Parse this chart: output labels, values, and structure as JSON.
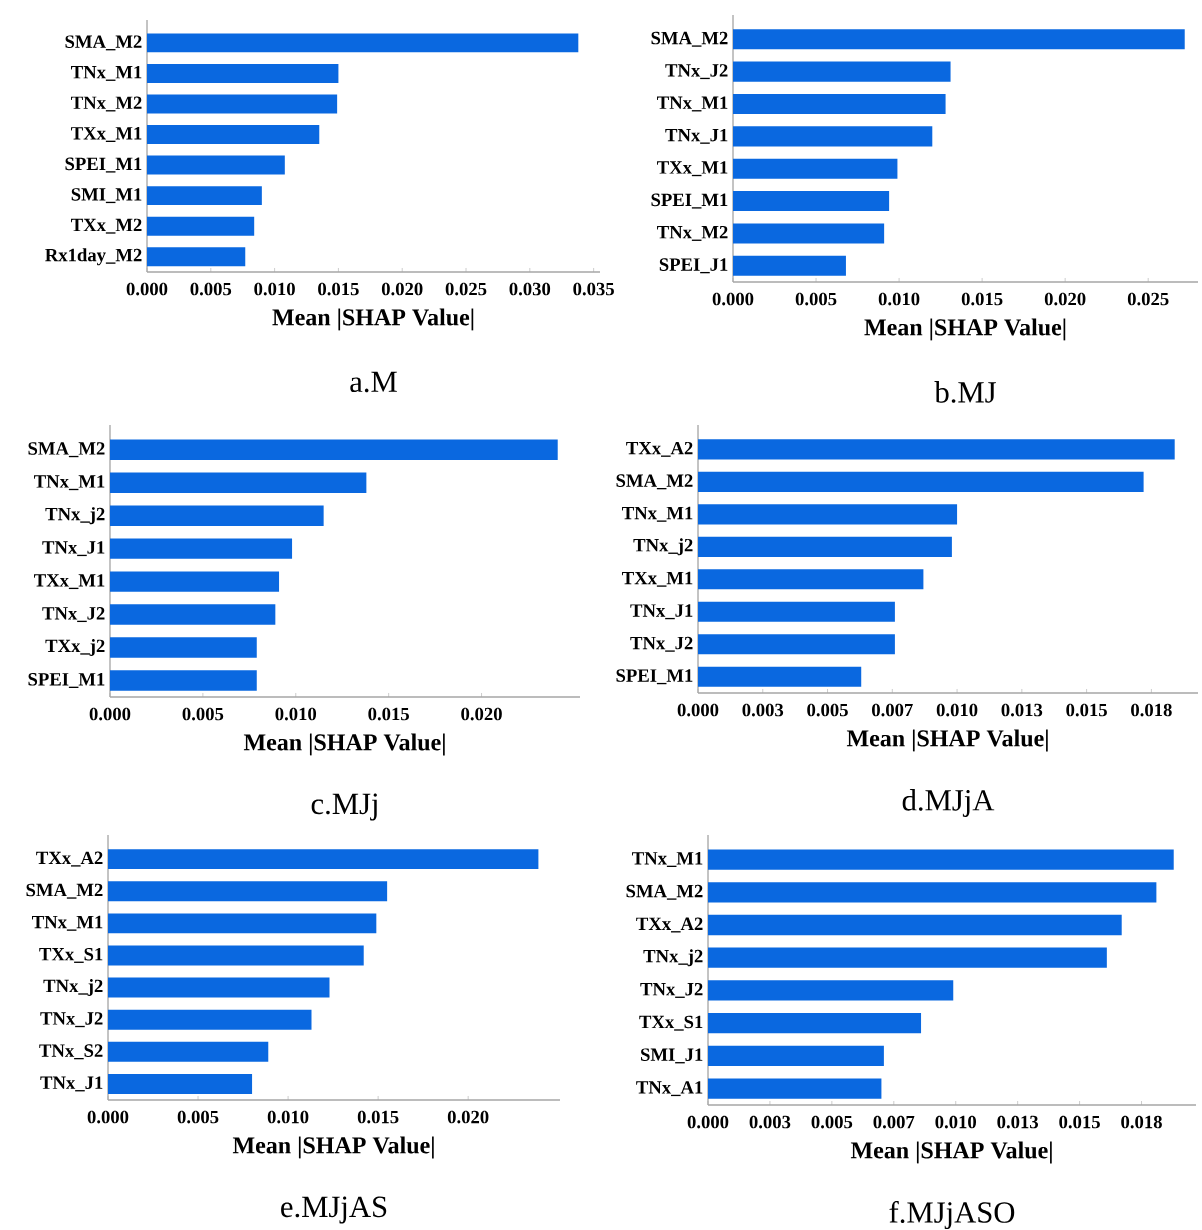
{
  "chart_data": [
    {
      "type": "bar",
      "orientation": "horizontal",
      "title": "a.M",
      "xlabel": "Mean |SHAP Value|",
      "color": "#0a68e0",
      "categories": [
        "SMA_M2",
        "TNx_M1",
        "TNx_M2",
        "TXx_M1",
        "SPEI_M1",
        "SMI_M1",
        "TXx_M2",
        "Rx1day_M2"
      ],
      "values": [
        0.0338,
        0.015,
        0.0149,
        0.0135,
        0.0108,
        0.009,
        0.0084,
        0.0077
      ],
      "xlim": [
        0,
        0.0355
      ],
      "xticks": [
        {
          "value": 0,
          "label": "0.000"
        },
        {
          "value": 0.005,
          "label": "0.005"
        },
        {
          "value": 0.01,
          "label": "0.010"
        },
        {
          "value": 0.015,
          "label": "0.015"
        },
        {
          "value": 0.02,
          "label": "0.020"
        },
        {
          "value": 0.025,
          "label": "0.025"
        },
        {
          "value": 0.03,
          "label": "0.030"
        },
        {
          "value": 0.035,
          "label": "0.035"
        }
      ]
    },
    {
      "type": "bar",
      "orientation": "horizontal",
      "title": "b.MJ",
      "xlabel": "Mean |SHAP Value|",
      "color": "#0a68e0",
      "categories": [
        "SMA_M2",
        "TNx_J2",
        "TNx_M1",
        "TNx_J1",
        "TXx_M1",
        "SPEI_M1",
        "TNx_M2",
        "SPEI_J1"
      ],
      "values": [
        0.0272,
        0.0131,
        0.0128,
        0.012,
        0.0099,
        0.0094,
        0.0091,
        0.0068
      ],
      "xlim": [
        0,
        0.028
      ],
      "xticks": [
        {
          "value": 0,
          "label": "0.000"
        },
        {
          "value": 0.005,
          "label": "0.005"
        },
        {
          "value": 0.01,
          "label": "0.010"
        },
        {
          "value": 0.015,
          "label": "0.015"
        },
        {
          "value": 0.02,
          "label": "0.020"
        },
        {
          "value": 0.025,
          "label": "0.025"
        }
      ]
    },
    {
      "type": "bar",
      "orientation": "horizontal",
      "title": "c.MJj",
      "xlabel": "Mean |SHAP Value|",
      "color": "#0a68e0",
      "categories": [
        "SMA_M2",
        "TNx_M1",
        "TNx_j2",
        "TNx_J1",
        "TXx_M1",
        "TNx_J2",
        "TXx_j2",
        "SPEI_M1"
      ],
      "values": [
        0.0241,
        0.0138,
        0.0115,
        0.0098,
        0.0091,
        0.0089,
        0.0079,
        0.0079
      ],
      "xlim": [
        0,
        0.0253
      ],
      "xticks": [
        {
          "value": 0,
          "label": "0.000"
        },
        {
          "value": 0.005,
          "label": "0.005"
        },
        {
          "value": 0.01,
          "label": "0.010"
        },
        {
          "value": 0.015,
          "label": "0.015"
        },
        {
          "value": 0.02,
          "label": "0.020"
        }
      ]
    },
    {
      "type": "bar",
      "orientation": "horizontal",
      "title": "d.MJjA",
      "xlabel": "Mean |SHAP Value|",
      "color": "#0a68e0",
      "categories": [
        "TXx_A2",
        "SMA_M2",
        "TNx_M1",
        "TNx_j2",
        "TXx_M1",
        "TNx_J1",
        "TNx_J2",
        "SPEI_M1"
      ],
      "values": [
        0.0184,
        0.0172,
        0.01,
        0.0098,
        0.0087,
        0.0076,
        0.0076,
        0.0063
      ],
      "xlim": [
        0,
        0.0193
      ],
      "xticks": [
        {
          "value": 0,
          "label": "0.000"
        },
        {
          "value": 0.0025,
          "label": "0.003"
        },
        {
          "value": 0.005,
          "label": "0.005"
        },
        {
          "value": 0.0075,
          "label": "0.007"
        },
        {
          "value": 0.01,
          "label": "0.010"
        },
        {
          "value": 0.0125,
          "label": "0.013"
        },
        {
          "value": 0.015,
          "label": "0.015"
        },
        {
          "value": 0.0175,
          "label": "0.018"
        }
      ]
    },
    {
      "type": "bar",
      "orientation": "horizontal",
      "title": "e.MJjAS",
      "xlabel": "Mean |SHAP Value|",
      "color": "#0a68e0",
      "categories": [
        "TXx_A2",
        "SMA_M2",
        "TNx_M1",
        "TXx_S1",
        "TNx_j2",
        "TNx_J2",
        "TNx_S2",
        "TNx_J1"
      ],
      "values": [
        0.0239,
        0.0155,
        0.0149,
        0.0142,
        0.0123,
        0.0113,
        0.0089,
        0.008
      ],
      "xlim": [
        0,
        0.0251
      ],
      "xticks": [
        {
          "value": 0,
          "label": "0.000"
        },
        {
          "value": 0.005,
          "label": "0.005"
        },
        {
          "value": 0.01,
          "label": "0.010"
        },
        {
          "value": 0.015,
          "label": "0.015"
        },
        {
          "value": 0.02,
          "label": "0.020"
        }
      ]
    },
    {
      "type": "bar",
      "orientation": "horizontal",
      "title": "f.MJjASO",
      "xlabel": "Mean |SHAP Value|",
      "color": "#0a68e0",
      "categories": [
        "TNx_M1",
        "SMA_M2",
        "TXx_A2",
        "TNx_j2",
        "TNx_J2",
        "TXx_S1",
        "SMI_J1",
        "TNx_A1"
      ],
      "values": [
        0.0188,
        0.0181,
        0.0167,
        0.0161,
        0.0099,
        0.0086,
        0.0071,
        0.007
      ],
      "xlim": [
        0,
        0.0197
      ],
      "xticks": [
        {
          "value": 0,
          "label": "0.000"
        },
        {
          "value": 0.0025,
          "label": "0.003"
        },
        {
          "value": 0.005,
          "label": "0.005"
        },
        {
          "value": 0.0075,
          "label": "0.007"
        },
        {
          "value": 0.01,
          "label": "0.010"
        },
        {
          "value": 0.0125,
          "label": "0.013"
        },
        {
          "value": 0.015,
          "label": "0.015"
        },
        {
          "value": 0.0175,
          "label": "0.018"
        }
      ]
    }
  ]
}
